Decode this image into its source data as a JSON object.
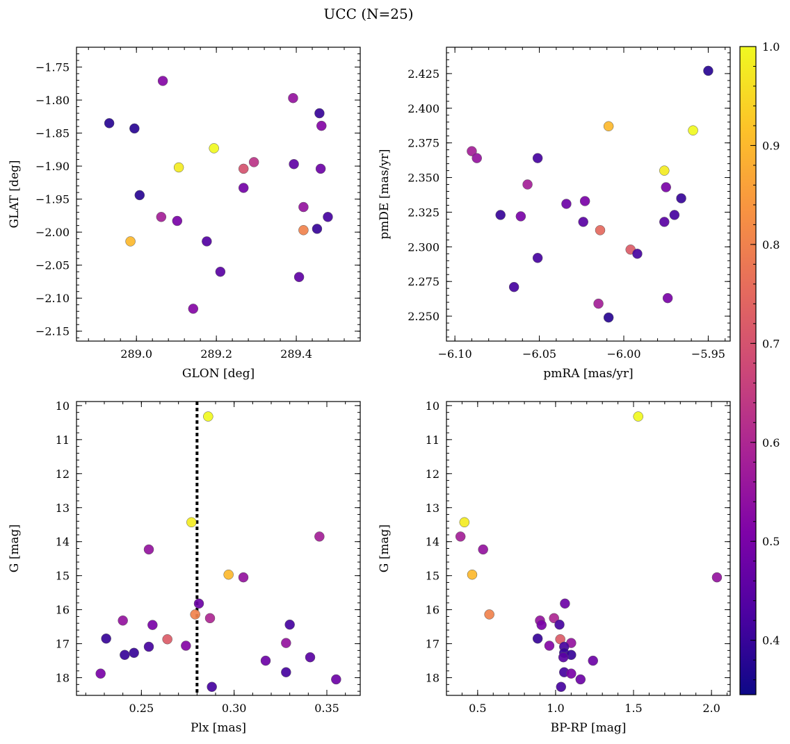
{
  "figure": {
    "title": "UCC (N=25)",
    "colormap": "plasma",
    "colorbar": {
      "range": [
        0.345,
        1.0
      ],
      "ticks": [
        0.4,
        0.5,
        0.6,
        0.7,
        0.8,
        0.9,
        1.0
      ],
      "tick_labels": [
        "0.4",
        "0.5",
        "0.6",
        "0.7",
        "0.8",
        "0.9",
        "1.0"
      ]
    }
  },
  "chart_data": [
    {
      "type": "scatter",
      "xlabel": "GLON [deg]",
      "ylabel": "GLAT [deg]",
      "xlim": [
        288.85,
        289.56
      ],
      "ylim": [
        -2.165,
        -1.72
      ],
      "xticks": [
        289.0,
        289.2,
        289.4
      ],
      "xtick_labels": [
        "289.0",
        "289.2",
        "289.4"
      ],
      "yticks": [
        -2.15,
        -2.1,
        -2.05,
        -2.0,
        -1.95,
        -1.9,
        -1.85,
        -1.8,
        -1.75
      ],
      "ytick_labels": [
        "−2.15",
        "−2.10",
        "−2.05",
        "−2.00",
        "−1.95",
        "−1.90",
        "−1.85",
        "−1.80",
        "−1.75"
      ],
      "points": [
        {
          "x": 289.066,
          "y": -1.771,
          "c": 0.52
        },
        {
          "x": 288.932,
          "y": -1.835,
          "c": 0.38
        },
        {
          "x": 288.995,
          "y": -1.843,
          "c": 0.38
        },
        {
          "x": 289.194,
          "y": -1.873,
          "c": 1.0
        },
        {
          "x": 289.106,
          "y": -1.902,
          "c": 0.98
        },
        {
          "x": 289.268,
          "y": -1.904,
          "c": 0.7
        },
        {
          "x": 289.294,
          "y": -1.894,
          "c": 0.63
        },
        {
          "x": 289.392,
          "y": -1.797,
          "c": 0.55
        },
        {
          "x": 289.458,
          "y": -1.82,
          "c": 0.4
        },
        {
          "x": 289.463,
          "y": -1.839,
          "c": 0.52
        },
        {
          "x": 289.394,
          "y": -1.897,
          "c": 0.46
        },
        {
          "x": 289.461,
          "y": -1.904,
          "c": 0.48
        },
        {
          "x": 289.008,
          "y": -1.944,
          "c": 0.38
        },
        {
          "x": 289.268,
          "y": -1.933,
          "c": 0.49
        },
        {
          "x": 289.418,
          "y": -1.962,
          "c": 0.55
        },
        {
          "x": 289.062,
          "y": -1.977,
          "c": 0.58
        },
        {
          "x": 289.102,
          "y": -1.983,
          "c": 0.5
        },
        {
          "x": 288.985,
          "y": -2.014,
          "c": 0.9
        },
        {
          "x": 289.176,
          "y": -2.014,
          "c": 0.44
        },
        {
          "x": 289.418,
          "y": -1.997,
          "c": 0.8
        },
        {
          "x": 289.452,
          "y": -1.995,
          "c": 0.4
        },
        {
          "x": 289.479,
          "y": -1.977,
          "c": 0.42
        },
        {
          "x": 289.21,
          "y": -2.06,
          "c": 0.45
        },
        {
          "x": 289.407,
          "y": -2.068,
          "c": 0.46
        },
        {
          "x": 289.142,
          "y": -2.116,
          "c": 0.52
        }
      ]
    },
    {
      "type": "scatter",
      "xlabel": "pmRA [mas/yr]",
      "ylabel": "pmDE [mas/yr]",
      "xlim": [
        -6.105,
        -5.937
      ],
      "ylim": [
        2.232,
        2.444
      ],
      "xticks": [
        -6.1,
        -6.05,
        -6.0,
        -5.95
      ],
      "xtick_labels": [
        "−6.10",
        "−6.05",
        "−6.00",
        "−5.95"
      ],
      "yticks": [
        2.25,
        2.275,
        2.3,
        2.325,
        2.35,
        2.375,
        2.4,
        2.425
      ],
      "ytick_labels": [
        "2.250",
        "2.275",
        "2.300",
        "2.325",
        "2.350",
        "2.375",
        "2.400",
        "2.425"
      ],
      "points": [
        {
          "x": -5.95,
          "y": 2.427,
          "c": 0.38
        },
        {
          "x": -6.009,
          "y": 2.387,
          "c": 0.9
        },
        {
          "x": -5.959,
          "y": 2.384,
          "c": 1.0
        },
        {
          "x": -6.09,
          "y": 2.369,
          "c": 0.58
        },
        {
          "x": -6.087,
          "y": 2.364,
          "c": 0.55
        },
        {
          "x": -6.051,
          "y": 2.364,
          "c": 0.42
        },
        {
          "x": -5.976,
          "y": 2.355,
          "c": 0.98
        },
        {
          "x": -6.057,
          "y": 2.345,
          "c": 0.58
        },
        {
          "x": -5.975,
          "y": 2.343,
          "c": 0.5
        },
        {
          "x": -5.966,
          "y": 2.335,
          "c": 0.4
        },
        {
          "x": -6.023,
          "y": 2.333,
          "c": 0.5
        },
        {
          "x": -6.034,
          "y": 2.331,
          "c": 0.48
        },
        {
          "x": -6.073,
          "y": 2.323,
          "c": 0.4
        },
        {
          "x": -5.97,
          "y": 2.323,
          "c": 0.42
        },
        {
          "x": -6.061,
          "y": 2.322,
          "c": 0.5
        },
        {
          "x": -6.024,
          "y": 2.318,
          "c": 0.45
        },
        {
          "x": -5.976,
          "y": 2.318,
          "c": 0.45
        },
        {
          "x": -6.014,
          "y": 2.312,
          "c": 0.75
        },
        {
          "x": -5.996,
          "y": 2.298,
          "c": 0.72
        },
        {
          "x": -5.992,
          "y": 2.295,
          "c": 0.42
        },
        {
          "x": -6.051,
          "y": 2.292,
          "c": 0.42
        },
        {
          "x": -6.065,
          "y": 2.271,
          "c": 0.42
        },
        {
          "x": -5.974,
          "y": 2.263,
          "c": 0.5
        },
        {
          "x": -6.015,
          "y": 2.259,
          "c": 0.58
        },
        {
          "x": -6.009,
          "y": 2.249,
          "c": 0.38
        }
      ]
    },
    {
      "type": "scatter",
      "xlabel": "Plx [mas]",
      "ylabel": "G [mag]",
      "xlim": [
        0.215,
        0.368
      ],
      "ylim": [
        18.52,
        9.88
      ],
      "y_inverted": true,
      "reference_line": {
        "x": 0.28,
        "style": "dotted"
      },
      "xticks": [
        0.25,
        0.3,
        0.35
      ],
      "xtick_labels": [
        "0.25",
        "0.30",
        "0.35"
      ],
      "yticks": [
        10,
        11,
        12,
        13,
        14,
        15,
        16,
        17,
        18
      ],
      "ytick_labels": [
        "10",
        "11",
        "12",
        "13",
        "14",
        "15",
        "16",
        "17",
        "18"
      ],
      "points": [
        {
          "x": 0.286,
          "y": 10.32,
          "c": 1.0
        },
        {
          "x": 0.277,
          "y": 13.43,
          "c": 0.98
        },
        {
          "x": 0.346,
          "y": 13.85,
          "c": 0.58
        },
        {
          "x": 0.254,
          "y": 14.23,
          "c": 0.55
        },
        {
          "x": 0.297,
          "y": 14.97,
          "c": 0.9
        },
        {
          "x": 0.305,
          "y": 15.05,
          "c": 0.55
        },
        {
          "x": 0.281,
          "y": 15.82,
          "c": 0.48
        },
        {
          "x": 0.279,
          "y": 16.14,
          "c": 0.8
        },
        {
          "x": 0.287,
          "y": 16.25,
          "c": 0.6
        },
        {
          "x": 0.24,
          "y": 16.32,
          "c": 0.55
        },
        {
          "x": 0.256,
          "y": 16.45,
          "c": 0.5
        },
        {
          "x": 0.33,
          "y": 16.44,
          "c": 0.42
        },
        {
          "x": 0.231,
          "y": 16.85,
          "c": 0.4
        },
        {
          "x": 0.264,
          "y": 16.87,
          "c": 0.72
        },
        {
          "x": 0.328,
          "y": 16.98,
          "c": 0.55
        },
        {
          "x": 0.274,
          "y": 17.06,
          "c": 0.52
        },
        {
          "x": 0.254,
          "y": 17.09,
          "c": 0.42
        },
        {
          "x": 0.246,
          "y": 17.27,
          "c": 0.4
        },
        {
          "x": 0.241,
          "y": 17.33,
          "c": 0.4
        },
        {
          "x": 0.341,
          "y": 17.4,
          "c": 0.45
        },
        {
          "x": 0.317,
          "y": 17.5,
          "c": 0.48
        },
        {
          "x": 0.328,
          "y": 17.84,
          "c": 0.42
        },
        {
          "x": 0.228,
          "y": 17.88,
          "c": 0.5
        },
        {
          "x": 0.355,
          "y": 18.05,
          "c": 0.48
        },
        {
          "x": 0.288,
          "y": 18.27,
          "c": 0.42
        }
      ]
    },
    {
      "type": "scatter",
      "xlabel": "BP-RP [mag]",
      "ylabel": "G [mag]",
      "xlim": [
        0.3,
        2.12
      ],
      "ylim": [
        18.52,
        9.88
      ],
      "y_inverted": true,
      "xticks": [
        0.5,
        1.0,
        1.5,
        2.0
      ],
      "xtick_labels": [
        "0.5",
        "1.0",
        "1.5",
        "2.0"
      ],
      "yticks": [
        10,
        11,
        12,
        13,
        14,
        15,
        16,
        17,
        18
      ],
      "ytick_labels": [
        "10",
        "11",
        "12",
        "13",
        "14",
        "15",
        "16",
        "17",
        "18"
      ],
      "points": [
        {
          "x": 1.53,
          "y": 10.32,
          "c": 1.0
        },
        {
          "x": 0.415,
          "y": 13.43,
          "c": 0.98
        },
        {
          "x": 0.39,
          "y": 13.85,
          "c": 0.58
        },
        {
          "x": 0.535,
          "y": 14.23,
          "c": 0.55
        },
        {
          "x": 0.465,
          "y": 14.97,
          "c": 0.9
        },
        {
          "x": 2.035,
          "y": 15.05,
          "c": 0.55
        },
        {
          "x": 1.06,
          "y": 15.82,
          "c": 0.48
        },
        {
          "x": 0.575,
          "y": 16.14,
          "c": 0.8
        },
        {
          "x": 0.99,
          "y": 16.25,
          "c": 0.6
        },
        {
          "x": 0.9,
          "y": 16.32,
          "c": 0.55
        },
        {
          "x": 0.91,
          "y": 16.45,
          "c": 0.5
        },
        {
          "x": 1.025,
          "y": 16.44,
          "c": 0.42
        },
        {
          "x": 0.885,
          "y": 16.85,
          "c": 0.4
        },
        {
          "x": 1.03,
          "y": 16.87,
          "c": 0.72
        },
        {
          "x": 1.1,
          "y": 16.98,
          "c": 0.55
        },
        {
          "x": 0.96,
          "y": 17.06,
          "c": 0.52
        },
        {
          "x": 1.055,
          "y": 17.09,
          "c": 0.42
        },
        {
          "x": 1.055,
          "y": 17.27,
          "c": 0.4
        },
        {
          "x": 1.1,
          "y": 17.33,
          "c": 0.4
        },
        {
          "x": 1.05,
          "y": 17.4,
          "c": 0.45
        },
        {
          "x": 1.24,
          "y": 17.5,
          "c": 0.48
        },
        {
          "x": 1.055,
          "y": 17.84,
          "c": 0.42
        },
        {
          "x": 1.1,
          "y": 17.88,
          "c": 0.5
        },
        {
          "x": 1.16,
          "y": 18.05,
          "c": 0.48
        },
        {
          "x": 1.035,
          "y": 18.27,
          "c": 0.42
        }
      ]
    }
  ]
}
